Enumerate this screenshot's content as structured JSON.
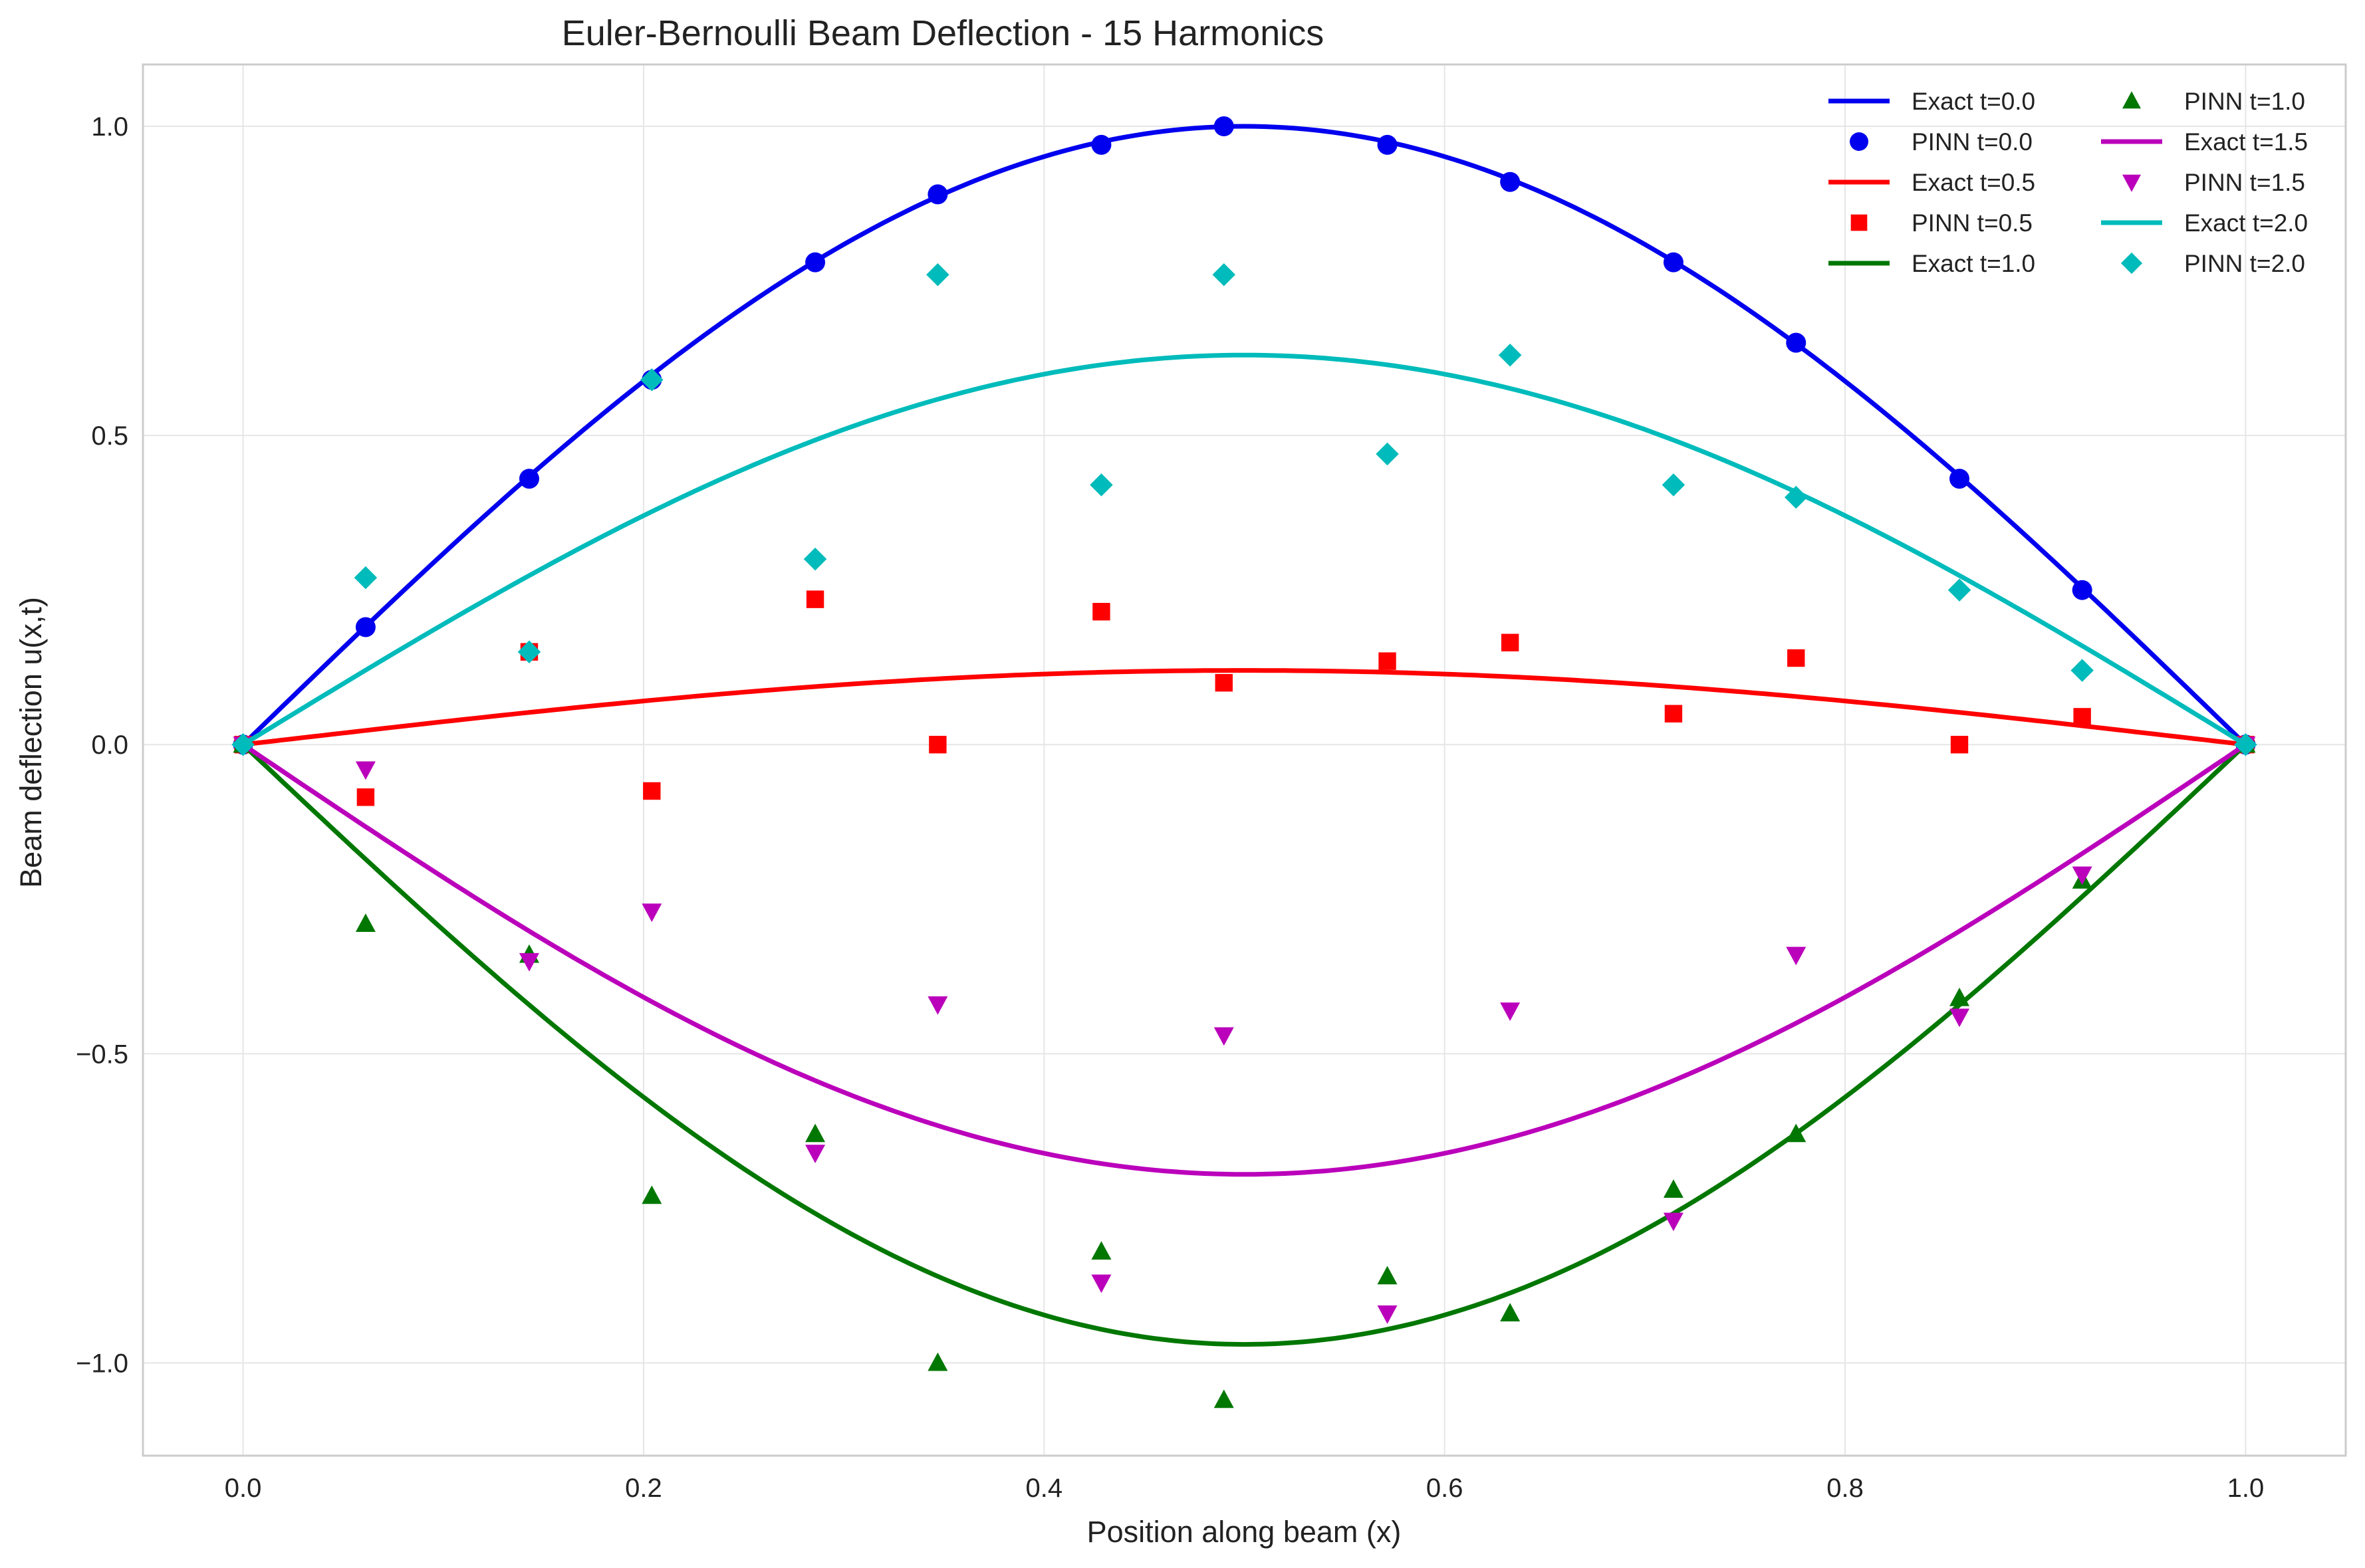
{
  "chart_data": {
    "type": "line",
    "title": "Euler-Bernoulli Beam Deflection - 15 Harmonics",
    "xlabel": "Position along beam (x)",
    "ylabel": "Beam deflection u(x,t)",
    "xlim": [
      -0.05,
      1.05
    ],
    "ylim": [
      -1.15,
      1.1
    ],
    "xticks": [
      0.0,
      0.2,
      0.4,
      0.6,
      0.8,
      1.0
    ],
    "xtick_labels": [
      "0.0",
      "0.2",
      "0.4",
      "0.6",
      "0.8",
      "1.0"
    ],
    "yticks": [
      -1.0,
      -0.5,
      0.0,
      0.5,
      1.0
    ],
    "ytick_labels": [
      "−1.0",
      "−0.5",
      "0.0",
      "0.5",
      "1.0"
    ],
    "grid": true,
    "legend_position": "upper right",
    "legend_columns": 2,
    "pinn_x": [
      0.0,
      0.0612,
      0.1429,
      0.2041,
      0.2857,
      0.3469,
      0.4286,
      0.4898,
      0.5714,
      0.6327,
      0.7143,
      0.7755,
      0.8571,
      0.9184,
      1.0
    ],
    "series": [
      {
        "name": "Exact t=0.0",
        "kind": "line",
        "color": "#0000ee",
        "amplitude": 1.0
      },
      {
        "name": "PINN t=0.0",
        "kind": "marker",
        "marker": "circle",
        "color": "#0000ee",
        "values": [
          0.0,
          0.19,
          0.43,
          0.59,
          0.78,
          0.89,
          0.97,
          1.0,
          0.97,
          0.91,
          0.78,
          0.65,
          0.43,
          0.25,
          0.0
        ]
      },
      {
        "name": "Exact t=0.5",
        "kind": "line",
        "color": "#ff0000",
        "amplitude": 0.12
      },
      {
        "name": "PINN t=0.5",
        "kind": "marker",
        "marker": "square",
        "color": "#ff0000",
        "values": [
          0.0,
          -0.085,
          0.15,
          -0.075,
          0.235,
          0.0,
          0.215,
          0.1,
          0.135,
          0.165,
          0.05,
          0.14,
          0.0,
          0.045,
          0.0
        ]
      },
      {
        "name": "Exact t=1.0",
        "kind": "line",
        "color": "#007700",
        "amplitude": -0.97
      },
      {
        "name": "PINN t=1.0",
        "kind": "marker",
        "marker": "triangle-up",
        "color": "#007700",
        "values": [
          0.0,
          -0.29,
          -0.34,
          -0.73,
          -0.63,
          -1.0,
          -0.82,
          -1.06,
          -0.86,
          -0.92,
          -0.72,
          -0.63,
          -0.41,
          -0.22,
          0.0
        ]
      },
      {
        "name": "Exact t=1.5",
        "kind": "line",
        "color": "#bb00bb",
        "amplitude": -0.695
      },
      {
        "name": "PINN t=1.5",
        "kind": "marker",
        "marker": "triangle-down",
        "color": "#bb00bb",
        "values": [
          0.0,
          -0.04,
          -0.35,
          -0.27,
          -0.66,
          -0.42,
          -0.87,
          -0.47,
          -0.92,
          -0.43,
          -0.77,
          -0.34,
          -0.44,
          -0.21,
          0.0
        ]
      },
      {
        "name": "Exact t=2.0",
        "kind": "line",
        "color": "#00bbbb",
        "amplitude": 0.63
      },
      {
        "name": "PINN t=2.0",
        "kind": "marker",
        "marker": "diamond",
        "color": "#00bbbb",
        "values": [
          0.0,
          0.27,
          0.15,
          0.59,
          0.3,
          0.76,
          0.42,
          0.76,
          0.47,
          0.63,
          0.42,
          0.4,
          0.25,
          0.12,
          0.0
        ]
      }
    ]
  }
}
